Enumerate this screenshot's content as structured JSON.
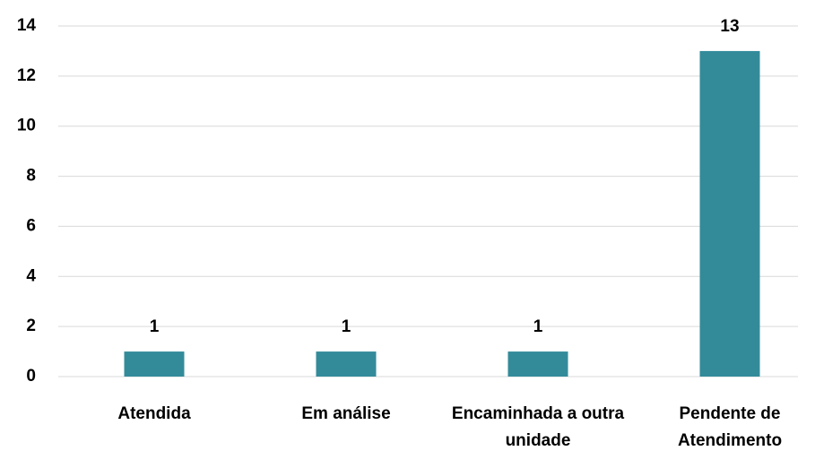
{
  "chart_data": {
    "type": "bar",
    "categories": [
      "Atendida",
      "Em análise",
      "Encaminhada a outra unidade",
      "Pendente de Atendimento"
    ],
    "values": [
      1,
      1,
      1,
      13
    ],
    "color": "#338b9a",
    "ylim": [
      0,
      14
    ],
    "yticks": [
      0,
      2,
      4,
      6,
      8,
      10,
      12,
      14
    ],
    "grid": true
  }
}
